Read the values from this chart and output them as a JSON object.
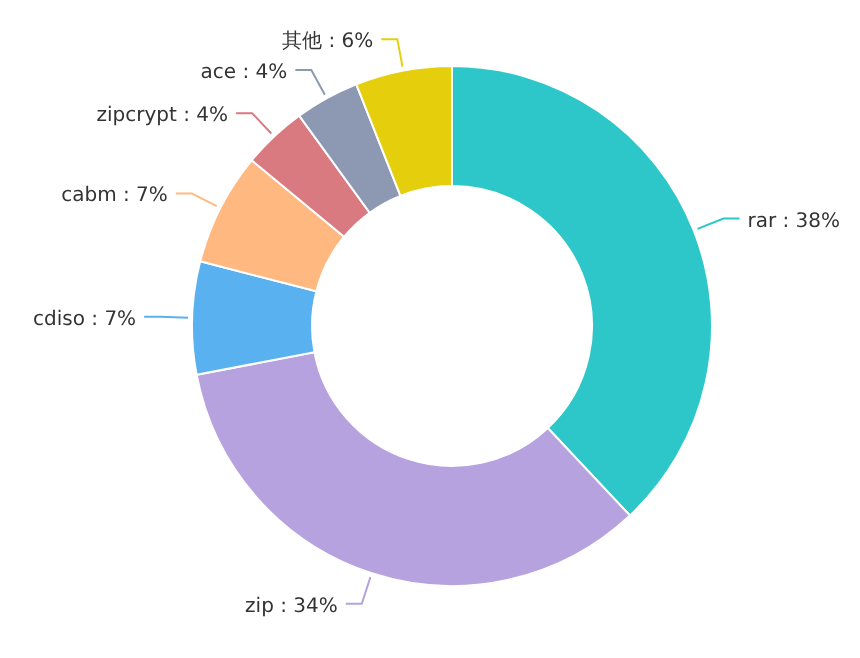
{
  "chart_data": {
    "type": "donut",
    "categories": [
      "rar",
      "zip",
      "cdiso",
      "cabm",
      "zipcrypt",
      "ace",
      "其他"
    ],
    "values": [
      38,
      34,
      7,
      7,
      4,
      4,
      6
    ],
    "value_labels": [
      "38%",
      "34%",
      "7%",
      "7%",
      "4%",
      "4%",
      "6%"
    ],
    "colors": [
      "#2ec7c9",
      "#b6a2de",
      "#5ab1ef",
      "#ffb980",
      "#d87a80",
      "#8d98b3",
      "#e5cf0d"
    ]
  }
}
